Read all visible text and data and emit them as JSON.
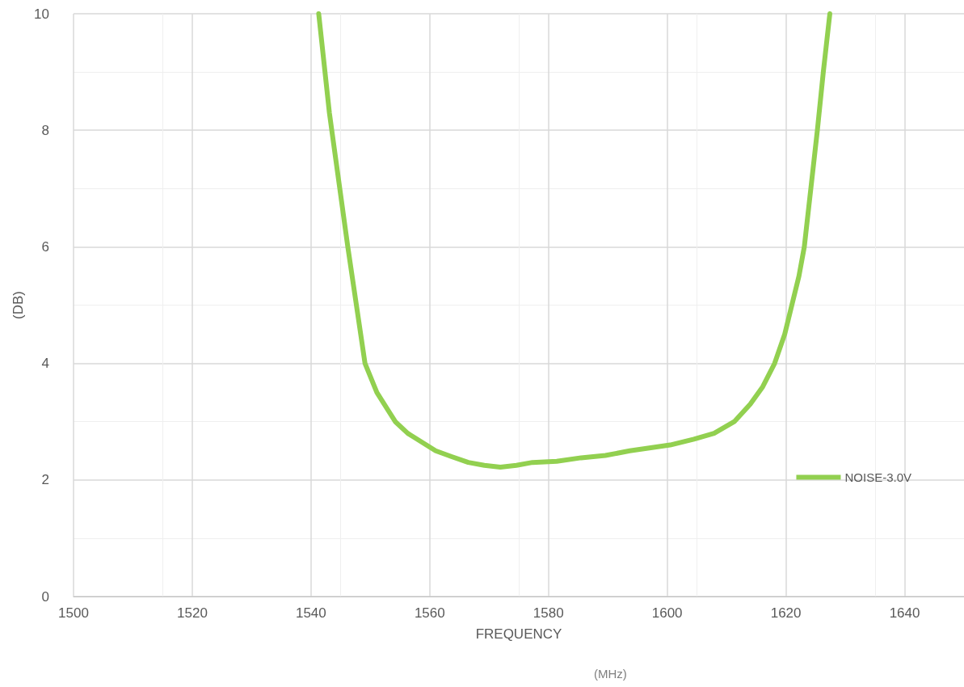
{
  "chart_data": {
    "type": "line",
    "xlabel": "FREQUENCY",
    "ylabel": "(DB)",
    "annotations": [
      "(MHz)"
    ],
    "xlim": [
      1500,
      1650
    ],
    "xticks": [
      1500,
      1520,
      1540,
      1560,
      1580,
      1600,
      1620,
      1640
    ],
    "ylim": [
      0,
      10
    ],
    "yticks": [
      0,
      2,
      4,
      6,
      8,
      10
    ],
    "grid": true,
    "legend": "right",
    "marker": "none",
    "line_style": "solid",
    "x": [
      1541.3,
      1543.1,
      1543.5,
      1546.2,
      1549.1,
      1551.1,
      1554.2,
      1556.3,
      1561,
      1563.7,
      1566.5,
      1569.2,
      1571.9,
      1574.6,
      1577.3,
      1581.4,
      1585.5,
      1589.6,
      1593.7,
      1597.7,
      1600.5,
      1604.5,
      1607.9,
      1611.3,
      1614,
      1616.1,
      1618.1,
      1619.8,
      1622.2,
      1623.1,
      1624.2,
      1625.3,
      1626.3,
      1627.4
    ],
    "series": [
      {
        "name": "NOISE-3.0V",
        "color": "#92d050",
        "values": [
          10,
          8.3,
          8,
          6,
          4,
          3.5,
          3,
          2.8,
          2.5,
          2.4,
          2.3,
          2.25,
          2.22,
          2.25,
          2.3,
          2.32,
          2.38,
          2.42,
          2.5,
          2.56,
          2.6,
          2.7,
          2.8,
          3,
          3.3,
          3.6,
          4,
          4.5,
          5.5,
          6,
          7,
          8,
          9,
          10
        ]
      }
    ]
  }
}
